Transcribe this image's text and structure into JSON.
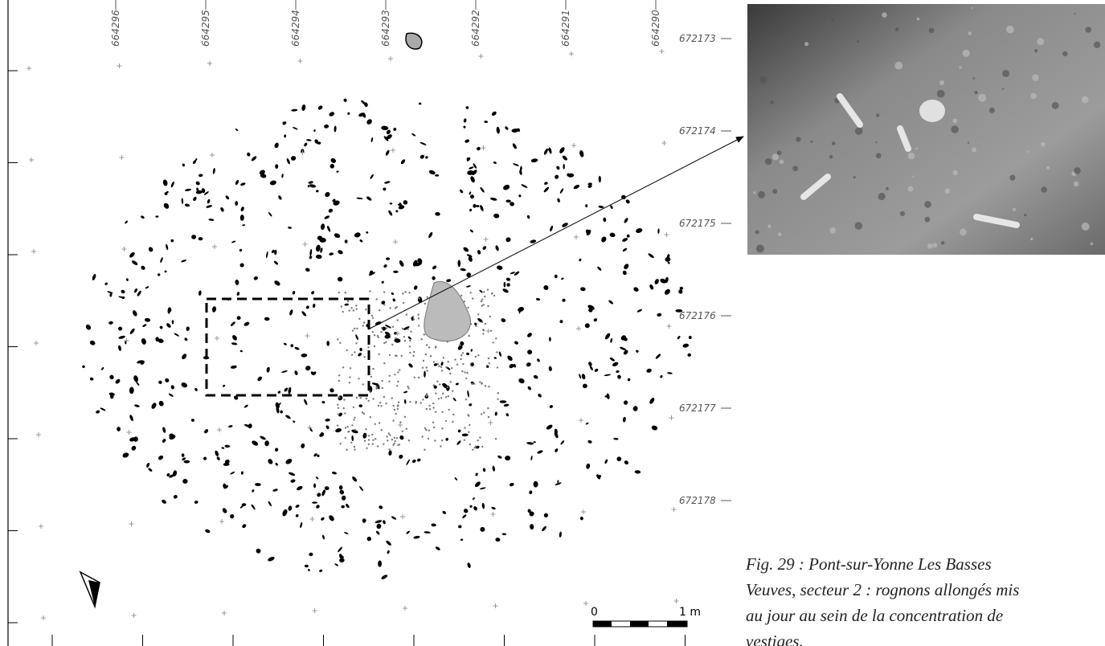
{
  "map": {
    "x_labels": [
      "664296",
      "664295",
      "664294",
      "664293",
      "664292",
      "664291",
      "664290"
    ],
    "y_labels": [
      "672173",
      "672174",
      "672175",
      "672176",
      "672177",
      "672178"
    ],
    "scale": {
      "start": "0",
      "end": "1 m"
    }
  },
  "caption": {
    "lines": [
      "Fig. 29 : Pont-sur-Yonne Les Basses",
      "Veuves, secteur 2 : rognons allongés mis",
      "au jour au sein de la concentration de",
      "vestiges."
    ]
  }
}
